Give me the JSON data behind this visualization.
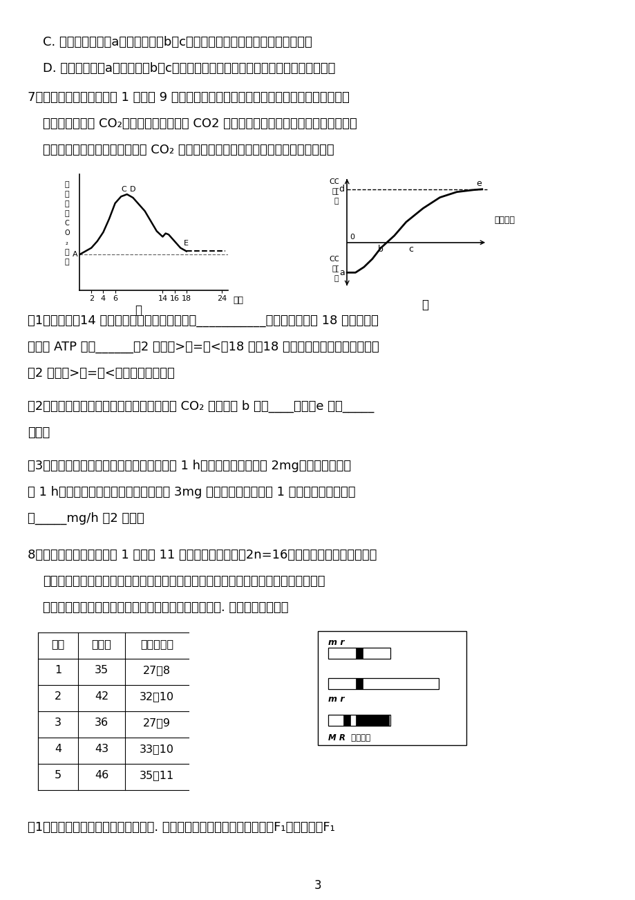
{
  "background_color": "#ffffff",
  "page_number": "3",
  "line_C": "C. 甲为农田害虫，a为喷施农药，b、c分别代表产生抗药基因，种群数量减少",
  "line_D": "D. 甲为同化量，a为太阳能，b、c分别代表呼吸作用热能散失，下一营养级的同化量",
  "q7_intro": "7．（除特殊标注外，每空 1 分，共 9 分）将一长势良好的大豆植株置于密闭玻璃罩内培养，",
  "q7_line2": "并置于室外，用 CO₂测定仪测定玻璃罩内 CO2 浓度一天的变化情况，绘成曲线如图甲所",
  "q7_line3": "示。图乙表示光照强度与该植株 CO₂ 吸收量或释放量的关系。请据图回答下列问题：",
  "q7_sub1_line1": "（1）图甲中，14 时受限制的主要是光合作用的___________阶段，该时刻与 18 时相比，叶",
  "q7_sub1_line2": "绿体中 ATP 含量______（2 分）（>、=、<）18 时。18 时，叶肉细胞中光合作用强度",
  "q7_sub1_line3": "（2 分）（>、=、<）呼吸作用强度。",
  "q7_sub2_line1": "（2）图乙中，其他条件皆适宜，若适当增大 CO₂ 浓度，则 b 点向____移动；e 点向_____",
  "q7_sub2_line2": "移动。",
  "q7_sub3_line1": "（3）若先将该植物的叶片在同温度下暗处理 1 h，暗处理后重量减少 2mg，随后立即再光",
  "q7_sub3_line2": "照 1 h，光照后与暗处理前相比重量增加 3mg 。则该植物叶片光照 1 小时的真正光合速率",
  "q7_sub3_line3": "为_____mg/h （2 分）。",
  "q8_intro": "8．（除特殊标注外，每空 1 分，共 11 分）某二倍体植物（2n=16）开两性花，可自花传粉。",
  "q8_line2": "研究者发现有雄性不育植株（即雄蕊发育异常不能产生有功能的花粉，但雌蕊发育正常",
  "q8_line3": "能接受正常花粉而受精结实），欲选育并用于杂交育种. 请回答下列问题：",
  "table_headers": [
    "编号",
    "总株数",
    "可育：不育"
  ],
  "table_rows": [
    [
      "1",
      "35",
      "27：8"
    ],
    [
      "2",
      "42",
      "32：10"
    ],
    [
      "3",
      "36",
      "27：9"
    ],
    [
      "4",
      "43",
      "33：10"
    ],
    [
      "5",
      "46",
      "35：11"
    ]
  ],
  "q8_sub1": "（1）雄性不育与可育是一对相对性状. 将雄性不育植株与可育植株杂交，F₁代均可育，F₁"
}
